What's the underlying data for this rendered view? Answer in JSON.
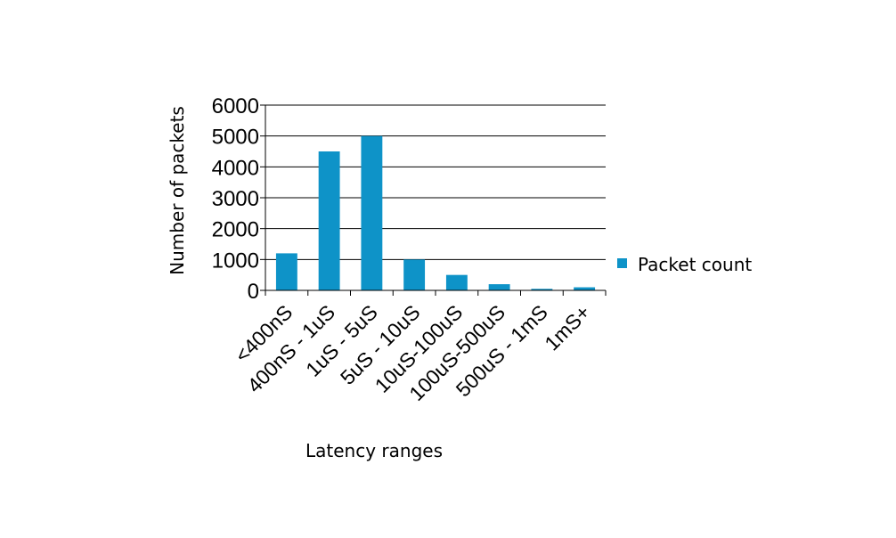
{
  "chart_data": {
    "type": "bar",
    "categories": [
      "<400nS",
      "400nS - 1uS",
      "1uS - 5uS",
      "5uS - 10uS",
      "10uS-100uS",
      "100uS-500uS",
      "500uS - 1mS",
      "1mS+"
    ],
    "series": [
      {
        "name": "Packet count",
        "values": [
          1200,
          4500,
          5000,
          1000,
          500,
          200,
          50,
          100
        ]
      }
    ],
    "xlabel": "Latency ranges",
    "ylabel": "Number of packets",
    "ylim": [
      0,
      6000
    ],
    "yticks": [
      0,
      1000,
      2000,
      3000,
      4000,
      5000,
      6000
    ],
    "grid": "horizontal",
    "legend_position": "right",
    "colors": {
      "bar": "#0e93c8",
      "grid": "#000000"
    }
  }
}
